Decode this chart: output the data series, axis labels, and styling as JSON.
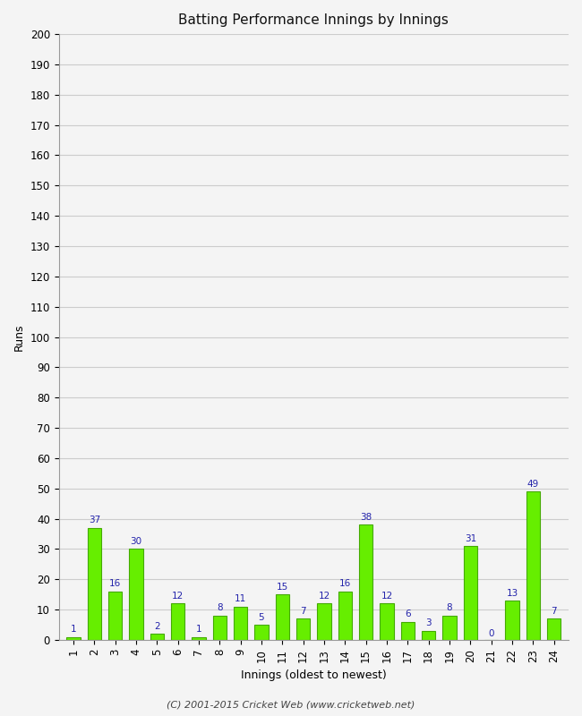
{
  "innings": [
    1,
    2,
    3,
    4,
    5,
    6,
    7,
    8,
    9,
    10,
    11,
    12,
    13,
    14,
    15,
    16,
    17,
    18,
    19,
    20,
    21,
    22,
    23,
    24
  ],
  "runs": [
    1,
    37,
    16,
    30,
    2,
    12,
    1,
    8,
    11,
    5,
    15,
    7,
    12,
    16,
    38,
    12,
    6,
    3,
    8,
    31,
    0,
    13,
    49,
    7
  ],
  "bar_color": "#66ee00",
  "bar_edge_color": "#44aa00",
  "label_color": "#2222aa",
  "title": "Batting Performance Innings by Innings",
  "xlabel": "Innings (oldest to newest)",
  "ylabel": "Runs",
  "ylim": [
    0,
    200
  ],
  "ytick_step": 10,
  "bg_color": "#f4f4f4",
  "grid_color": "#cccccc",
  "footer": "(C) 2001-2015 Cricket Web (www.cricketweb.net)",
  "label_fontsize": 7.5,
  "tick_fontsize": 8.5,
  "axis_label_fontsize": 9,
  "title_fontsize": 11,
  "footer_fontsize": 8
}
